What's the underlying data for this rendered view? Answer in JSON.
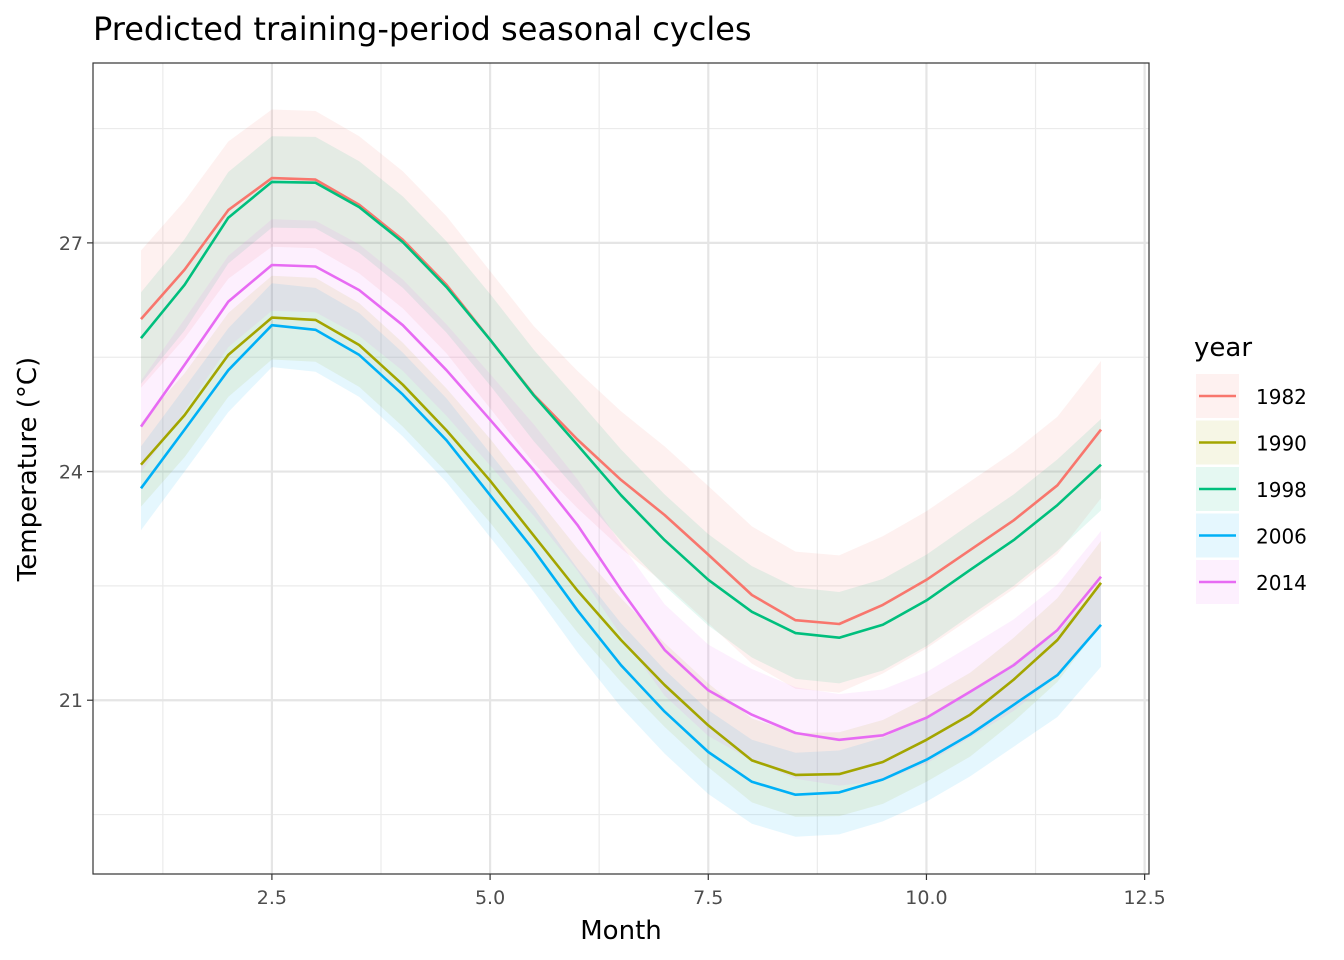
{
  "chart_data": {
    "type": "line",
    "title": "Predicted training-period seasonal cycles",
    "xlabel": "Month",
    "ylabel": "Temperature (°C)",
    "xlim": [
      0.45,
      12.55
    ],
    "ylim": [
      18.72,
      29.36
    ],
    "x_ticks": [
      2.5,
      5.0,
      7.5,
      10.0,
      12.5
    ],
    "x_tick_labels": [
      "2.5",
      "5.0",
      "7.5",
      "10.0",
      "12.5"
    ],
    "y_ticks": [
      21,
      24,
      27
    ],
    "y_tick_labels": [
      "21",
      "24",
      "27"
    ],
    "grid": true,
    "legend": {
      "title": "year",
      "position": "right"
    },
    "ribbon": "confidence band",
    "x": [
      1,
      1.5,
      2,
      2.5,
      3,
      3.5,
      4,
      4.5,
      5,
      5.5,
      6,
      6.5,
      7,
      7.5,
      8,
      8.5,
      9,
      9.5,
      10,
      10.5,
      11,
      11.5,
      12
    ],
    "series": [
      {
        "name": "1982",
        "color": "#F8766D",
        "values": [
          26.0,
          26.65,
          27.43,
          27.85,
          27.83,
          27.5,
          27.04,
          26.45,
          25.73,
          25.01,
          24.42,
          23.89,
          23.43,
          22.91,
          22.38,
          22.05,
          22.0,
          22.25,
          22.58,
          22.97,
          23.36,
          23.82,
          24.55
        ],
        "lower": [
          25.1,
          25.75,
          26.53,
          26.95,
          26.93,
          26.6,
          26.14,
          25.55,
          24.83,
          24.11,
          23.52,
          22.99,
          22.53,
          22.01,
          21.48,
          21.15,
          21.1,
          21.35,
          21.68,
          22.07,
          22.46,
          22.92,
          23.65
        ],
        "upper": [
          26.9,
          27.55,
          28.33,
          28.75,
          28.73,
          28.4,
          27.94,
          27.35,
          26.63,
          25.91,
          25.32,
          24.79,
          24.33,
          23.81,
          23.28,
          22.95,
          22.9,
          23.15,
          23.48,
          23.87,
          24.26,
          24.72,
          25.45
        ]
      },
      {
        "name": "1990",
        "color": "#A3A500",
        "values": [
          24.09,
          24.74,
          25.53,
          26.02,
          25.99,
          25.66,
          25.14,
          24.54,
          23.88,
          23.16,
          22.44,
          21.79,
          21.2,
          20.67,
          20.21,
          20.02,
          20.03,
          20.19,
          20.48,
          20.81,
          21.27,
          21.79,
          22.54
        ],
        "lower": [
          23.54,
          24.19,
          24.98,
          25.47,
          25.44,
          25.11,
          24.59,
          23.99,
          23.33,
          22.61,
          21.89,
          21.24,
          20.65,
          20.12,
          19.66,
          19.47,
          19.48,
          19.64,
          19.93,
          20.26,
          20.72,
          21.24,
          21.99
        ],
        "upper": [
          24.64,
          25.29,
          26.08,
          26.57,
          26.54,
          26.21,
          25.69,
          25.09,
          24.43,
          23.71,
          22.99,
          22.34,
          21.75,
          21.22,
          20.76,
          20.57,
          20.58,
          20.74,
          21.03,
          21.36,
          21.82,
          22.34,
          23.09
        ]
      },
      {
        "name": "1998",
        "color": "#00BF7D",
        "values": [
          25.75,
          26.45,
          27.33,
          27.8,
          27.79,
          27.47,
          27.01,
          26.42,
          25.73,
          25.0,
          24.35,
          23.69,
          23.1,
          22.58,
          22.16,
          21.88,
          21.82,
          21.99,
          22.31,
          22.71,
          23.1,
          23.56,
          24.09
        ],
        "lower": [
          25.15,
          25.85,
          26.73,
          27.2,
          27.19,
          26.87,
          26.41,
          25.82,
          25.13,
          24.4,
          23.75,
          23.09,
          22.5,
          21.98,
          21.56,
          21.28,
          21.22,
          21.39,
          21.71,
          22.11,
          22.5,
          22.96,
          23.49
        ],
        "upper": [
          26.35,
          27.05,
          27.93,
          28.4,
          28.39,
          28.07,
          27.61,
          27.02,
          26.33,
          25.6,
          24.95,
          24.29,
          23.7,
          23.18,
          22.76,
          22.48,
          22.42,
          22.59,
          22.91,
          23.31,
          23.7,
          24.16,
          24.69
        ]
      },
      {
        "name": "2006",
        "color": "#00B0F6",
        "values": [
          23.78,
          24.55,
          25.33,
          25.92,
          25.86,
          25.53,
          25.01,
          24.41,
          23.69,
          22.97,
          22.18,
          21.46,
          20.85,
          20.32,
          19.93,
          19.76,
          19.79,
          19.96,
          20.22,
          20.55,
          20.94,
          21.33,
          21.99
        ],
        "lower": [
          23.23,
          24.0,
          24.78,
          25.37,
          25.31,
          24.98,
          24.46,
          23.86,
          23.14,
          22.42,
          21.63,
          20.91,
          20.3,
          19.77,
          19.38,
          19.21,
          19.24,
          19.41,
          19.67,
          20.0,
          20.39,
          20.78,
          21.44
        ],
        "upper": [
          24.33,
          25.1,
          25.88,
          26.47,
          26.41,
          26.08,
          25.56,
          24.96,
          24.24,
          23.52,
          22.73,
          22.01,
          21.4,
          20.87,
          20.48,
          20.31,
          20.34,
          20.51,
          20.77,
          21.1,
          21.49,
          21.88,
          22.54
        ]
      },
      {
        "name": "2014",
        "color": "#E76BF3",
        "values": [
          24.59,
          25.4,
          26.23,
          26.71,
          26.69,
          26.38,
          25.92,
          25.33,
          24.68,
          24.02,
          23.3,
          22.45,
          21.66,
          21.13,
          20.81,
          20.57,
          20.48,
          20.54,
          20.77,
          21.11,
          21.46,
          21.92,
          22.62
        ],
        "lower": [
          23.99,
          24.8,
          25.63,
          26.11,
          26.09,
          25.78,
          25.32,
          24.73,
          24.08,
          23.42,
          22.7,
          21.85,
          21.06,
          20.53,
          20.21,
          19.97,
          19.88,
          19.94,
          20.17,
          20.51,
          20.86,
          21.32,
          22.02
        ],
        "upper": [
          25.19,
          26.0,
          26.83,
          27.31,
          27.29,
          26.98,
          26.52,
          25.93,
          25.28,
          24.62,
          23.9,
          23.05,
          22.26,
          21.73,
          21.41,
          21.17,
          21.08,
          21.14,
          21.37,
          21.71,
          22.06,
          22.52,
          23.22
        ]
      }
    ]
  }
}
